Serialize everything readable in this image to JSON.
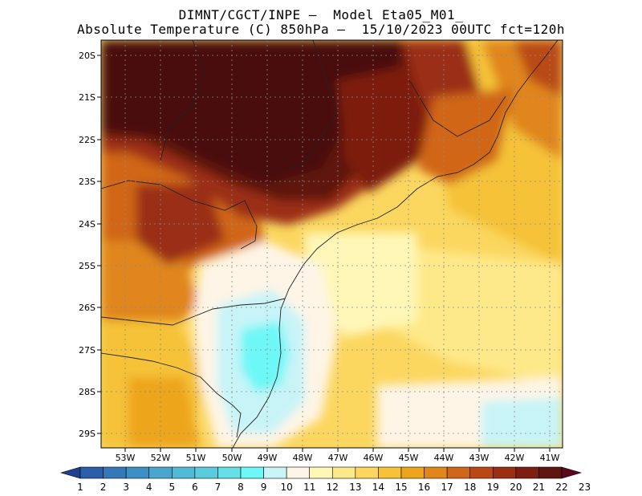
{
  "title_line1": "DIMNT/CGCT/INPE –  Model Eta05_M01_",
  "title_line2": "Absolute Temperature (C) 850hPa –  15/10/2023 00UTC fct=120h",
  "map": {
    "lon_labels": [
      "53W",
      "52W",
      "51W",
      "50W",
      "49W",
      "48W",
      "47W",
      "46W",
      "45W",
      "44W",
      "43W",
      "42W",
      "41W"
    ],
    "lat_labels": [
      "20S",
      "21S",
      "22S",
      "23S",
      "24S",
      "25S",
      "26S",
      "27S",
      "28S",
      "29S"
    ]
  },
  "colorbar": {
    "labels": [
      "1",
      "2",
      "3",
      "4",
      "5",
      "6",
      "7",
      "8",
      "9",
      "10",
      "11",
      "12",
      "13",
      "14",
      "15",
      "16",
      "17",
      "18",
      "19",
      "20",
      "21",
      "22",
      "23"
    ],
    "colors": [
      "#1f3f8f",
      "#2a5ea8",
      "#3478b8",
      "#3f8fc4",
      "#4aa6cf",
      "#52b9d6",
      "#5ccbdc",
      "#66dfe6",
      "#6df7f7",
      "#c8f4f8",
      "#fff5e6",
      "#fff7b8",
      "#fee98a",
      "#fbd760",
      "#f5c239",
      "#eda51b",
      "#e0861a",
      "#d06619",
      "#b94816",
      "#9b2f12",
      "#7d1e10",
      "#5e1410",
      "#5a0a1a"
    ]
  }
}
